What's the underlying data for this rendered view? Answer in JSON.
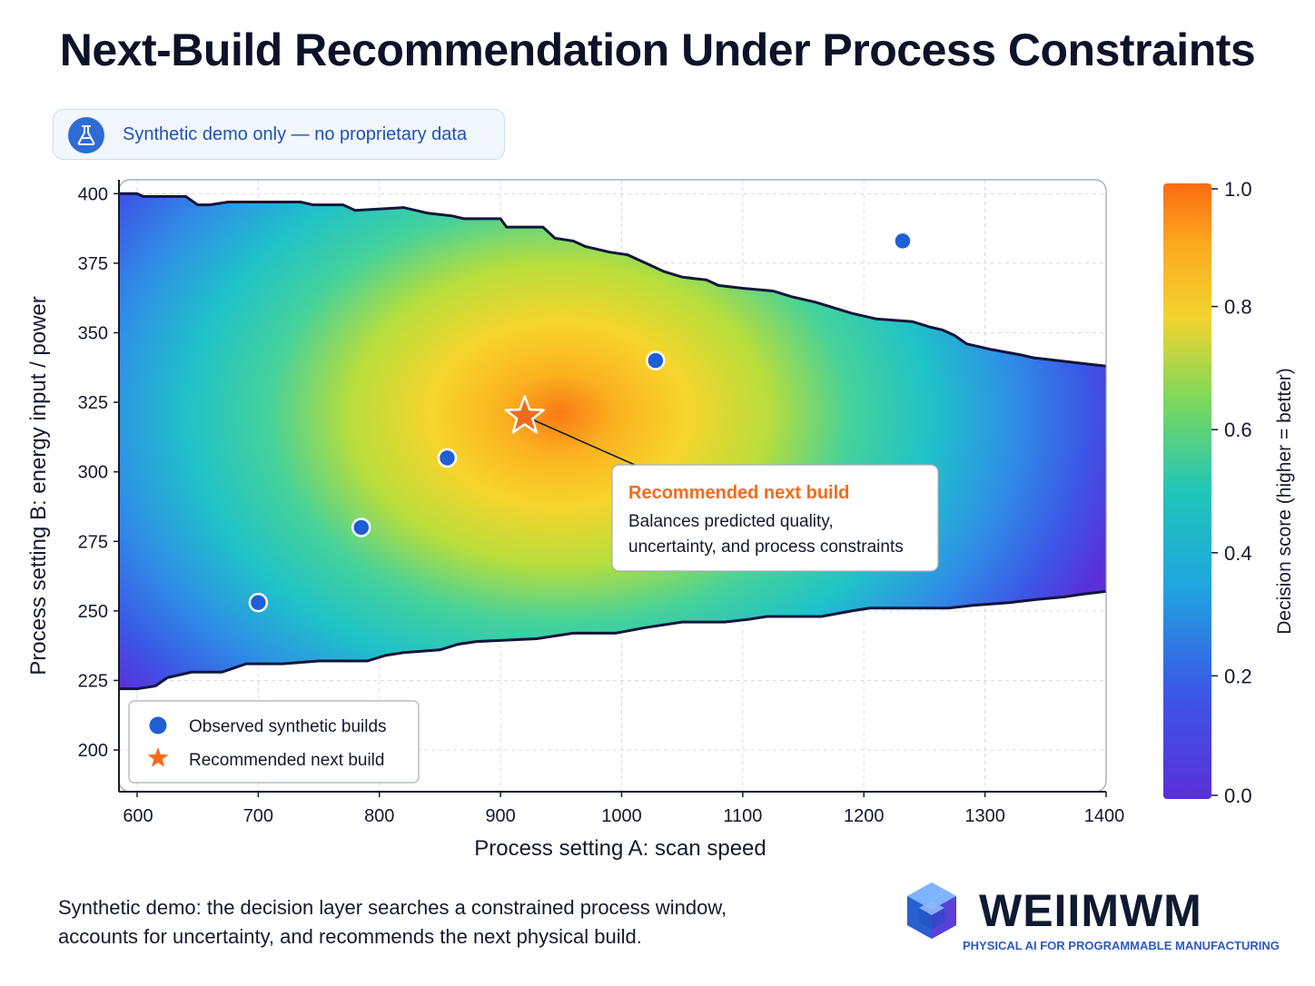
{
  "page": {
    "title": "Next-Build Recommendation Under Process Constraints",
    "badge": {
      "icon": "flask-icon",
      "text": "Synthetic demo only — no proprietary data"
    },
    "caption_line1": "Synthetic demo: the decision layer searches a constrained process window,",
    "caption_line2": "accounts for uncertainty, and recommends the next physical build.",
    "brand": {
      "logo_icon": "cube-logo-icon",
      "name": "WEIIMWM",
      "tagline": "PHYSICAL AI FOR PROGRAMMABLE MANUFACTURING"
    }
  },
  "chart_data": {
    "type": "heatmap",
    "xlabel": "Process setting A: scan speed",
    "ylabel": "Process setting B: energy input / power",
    "xlim": [
      585,
      1400
    ],
    "ylim": [
      185,
      405
    ],
    "x_ticks": [
      600,
      700,
      800,
      900,
      1000,
      1100,
      1200,
      1300,
      1400
    ],
    "y_ticks": [
      200,
      225,
      250,
      275,
      300,
      325,
      350,
      375,
      400
    ],
    "grid": true,
    "colormap": "plasma-like (purple → blue → teal → green → yellow → orange)",
    "colorbar": {
      "label": "Decision score (higher = better)",
      "range": [
        0.0,
        1.0
      ],
      "ticks": [
        "0.0",
        "0.2",
        "0.4",
        "0.6",
        "0.8",
        "1.0"
      ]
    },
    "score_peak": {
      "x": 920,
      "y": 320,
      "value": 1.0
    },
    "feasible_region": {
      "upper_boundary": [
        [
          585,
          400
        ],
        [
          600,
          400
        ],
        [
          605,
          399
        ],
        [
          640,
          399
        ],
        [
          650,
          396
        ],
        [
          660,
          396
        ],
        [
          675,
          397
        ],
        [
          705,
          397
        ],
        [
          735,
          397
        ],
        [
          745,
          396
        ],
        [
          770,
          396
        ],
        [
          780,
          394
        ],
        [
          820,
          395
        ],
        [
          840,
          393
        ],
        [
          860,
          392
        ],
        [
          870,
          391
        ],
        [
          900,
          391
        ],
        [
          905,
          388
        ],
        [
          935,
          388
        ],
        [
          945,
          384
        ],
        [
          960,
          383
        ],
        [
          970,
          381
        ],
        [
          990,
          379
        ],
        [
          1005,
          378
        ],
        [
          1020,
          375
        ],
        [
          1035,
          372
        ],
        [
          1050,
          370
        ],
        [
          1070,
          369
        ],
        [
          1080,
          367
        ],
        [
          1100,
          366
        ],
        [
          1125,
          365
        ],
        [
          1140,
          363
        ],
        [
          1160,
          361
        ],
        [
          1175,
          359
        ],
        [
          1190,
          357
        ],
        [
          1210,
          355
        ],
        [
          1240,
          354
        ],
        [
          1255,
          352
        ],
        [
          1265,
          351
        ],
        [
          1275,
          349
        ],
        [
          1285,
          346
        ],
        [
          1305,
          344
        ],
        [
          1330,
          342
        ],
        [
          1340,
          341
        ],
        [
          1360,
          340
        ],
        [
          1380,
          339
        ],
        [
          1400,
          338
        ]
      ],
      "lower_boundary": [
        [
          585,
          222
        ],
        [
          600,
          222
        ],
        [
          615,
          223
        ],
        [
          625,
          226
        ],
        [
          645,
          228
        ],
        [
          670,
          228
        ],
        [
          690,
          231
        ],
        [
          720,
          231
        ],
        [
          750,
          232
        ],
        [
          790,
          232
        ],
        [
          805,
          234
        ],
        [
          820,
          235
        ],
        [
          850,
          236
        ],
        [
          865,
          238
        ],
        [
          880,
          239
        ],
        [
          930,
          240
        ],
        [
          960,
          242
        ],
        [
          995,
          242
        ],
        [
          1020,
          244
        ],
        [
          1050,
          246
        ],
        [
          1085,
          246
        ],
        [
          1105,
          247
        ],
        [
          1120,
          248
        ],
        [
          1165,
          248
        ],
        [
          1190,
          250
        ],
        [
          1205,
          251
        ],
        [
          1270,
          251
        ],
        [
          1290,
          252
        ],
        [
          1320,
          253
        ],
        [
          1340,
          254
        ],
        [
          1365,
          255
        ],
        [
          1380,
          256
        ],
        [
          1400,
          257
        ]
      ]
    },
    "series": [
      {
        "name": "Observed synthetic builds",
        "marker": "circle",
        "color": "#1f5fd6",
        "points": [
          [
            700,
            253
          ],
          [
            785,
            280
          ],
          [
            856,
            305
          ],
          [
            1028,
            340
          ],
          [
            1232,
            383
          ]
        ]
      },
      {
        "name": "Recommended next build",
        "marker": "star",
        "color": "#f26b1d",
        "points": [
          [
            920,
            320
          ]
        ]
      }
    ],
    "annotation": {
      "title": "Recommended next build",
      "line1": "Balances predicted quality,",
      "line2": "uncertainty, and process constraints",
      "target": [
        920,
        320
      ]
    },
    "legend": {
      "position": "bottom-left",
      "items": [
        "Observed synthetic builds",
        "Recommended next build"
      ]
    },
    "colors": {
      "boundary": "#12163a",
      "highlight": "#f26b1d",
      "observed": "#1f5fd6"
    }
  }
}
